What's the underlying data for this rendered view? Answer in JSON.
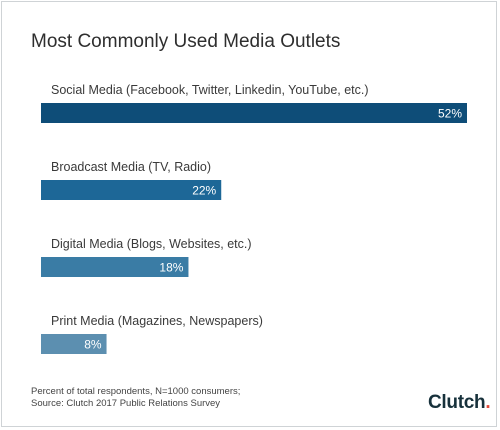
{
  "chart_data": {
    "type": "bar",
    "orientation": "horizontal",
    "title": "Most Commonly Used Media Outlets",
    "categories": [
      "Social Media (Facebook, Twitter, Linkedin, YouTube, etc.)",
      "Broadcast Media (TV, Radio)",
      "Digital Media (Blogs, Websites, etc.)",
      "Print Media (Magazines, Newspapers)"
    ],
    "values": [
      52,
      22,
      18,
      8
    ],
    "value_labels": [
      "52%",
      "22%",
      "18%",
      "8%"
    ],
    "unit": "%",
    "xlim": [
      0,
      52
    ],
    "grid": false,
    "legend": "none",
    "colors": [
      "#0e4d78",
      "#1d6797",
      "#3a7ca5",
      "#5c8fb0"
    ]
  },
  "footer": {
    "note_line1": "Percent of total respondents, N=1000 consumers;",
    "note_line2": "Source: Clutch 2017 Public Relations Survey"
  },
  "logo": {
    "text": "Clutch",
    "dot_color": "#e34a3a",
    "text_color": "#17313b"
  }
}
